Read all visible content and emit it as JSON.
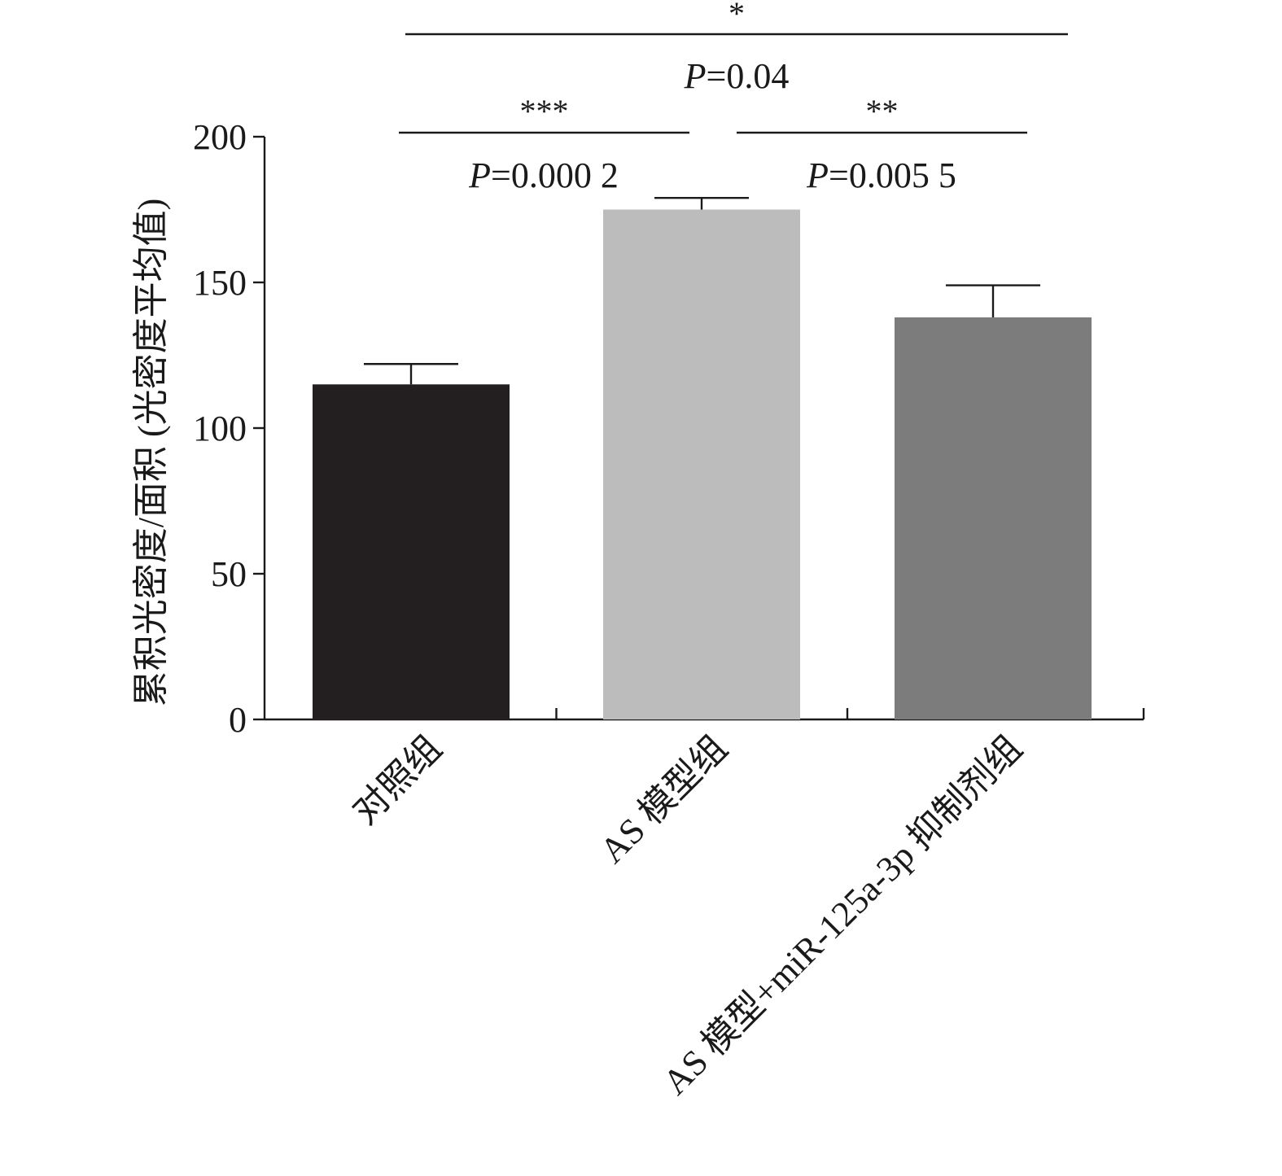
{
  "chart_data": {
    "type": "bar",
    "ylabel": "累积光密度/面积 (光密度平均值)",
    "xlabel": "",
    "ylim": [
      0,
      200
    ],
    "yticks": [
      0,
      50,
      100,
      150,
      200
    ],
    "categories": [
      "对照组",
      "AS 模型组",
      "AS 模型+miR-125a-3p 抑制剂组"
    ],
    "values": [
      115,
      175,
      138
    ],
    "errors": [
      7,
      4,
      11
    ],
    "colors": [
      "#231f20",
      "#bcbcbc",
      "#7d7c7c"
    ],
    "grid": false,
    "significance": [
      {
        "from": 0,
        "to": 1,
        "stars": "***",
        "p_label": "P",
        "p_value": "=0.000 2"
      },
      {
        "from": 1,
        "to": 2,
        "stars": "**",
        "p_label": "P",
        "p_value": "=0.005 5"
      },
      {
        "from": 0,
        "to": 2,
        "stars": "*",
        "p_label": "P",
        "p_value": "=0.04"
      }
    ]
  }
}
